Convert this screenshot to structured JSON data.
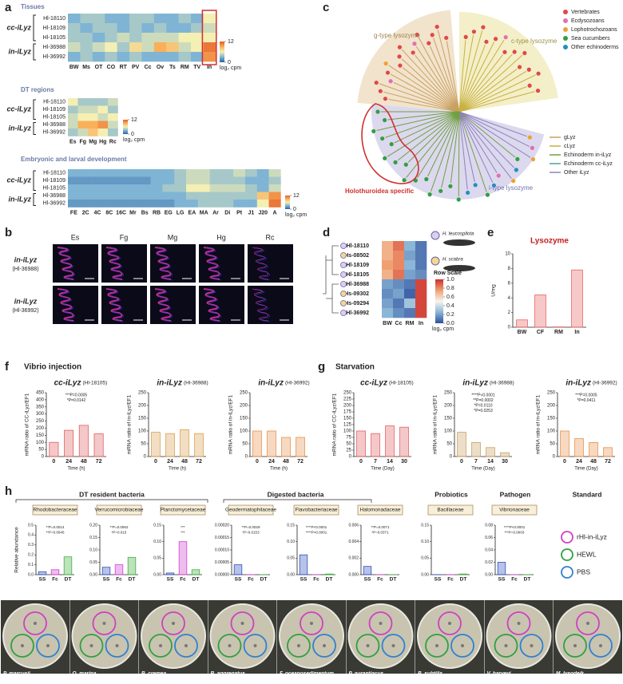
{
  "panel_labels": [
    "a",
    "b",
    "c",
    "d",
    "e",
    "f",
    "g",
    "h"
  ],
  "a": {
    "groups": [
      "cc-iLyz",
      "in-iLyz"
    ]
  },
  "b": {
    "columns": [
      "Es",
      "Fg",
      "Mg",
      "Hg",
      "Rc"
    ],
    "rows": [
      {
        "gene": "in-iLyz",
        "id": "(Hl-36988)"
      },
      {
        "gene": "in-iLyz",
        "id": "(Hl-36992)"
      }
    ]
  },
  "c": {
    "sectors": [
      "g-type lysozyme",
      "c-type lysozyme",
      "i-type lysozyme"
    ],
    "highlight": "Holothuroidea specific",
    "dot_legend": [
      {
        "name": "Vertebrates",
        "color": "#e04848"
      },
      {
        "name": "Ecdysozoans",
        "color": "#e070b0"
      },
      {
        "name": "Lophotrochozoans",
        "color": "#f0a030"
      },
      {
        "name": "Sea cucumbers",
        "color": "#30a040"
      },
      {
        "name": "Other echinoderms",
        "color": "#2090c0"
      }
    ],
    "line_legend": [
      {
        "name": "gLyz",
        "color": "#c8a060"
      },
      {
        "name": "cLyz",
        "color": "#c8b040"
      },
      {
        "name": "Echinoderm in-iLyz",
        "color": "#70a040"
      },
      {
        "name": "Echinoderm cc-iLyz",
        "color": "#50a0a0"
      },
      {
        "name": "Other iLyz",
        "color": "#9080c0"
      }
    ]
  },
  "d": {
    "species": [
      "H. leucospilota",
      "H. scabra"
    ]
  },
  "f": {
    "title": "Vibrio injection"
  },
  "g": {
    "title": "Starvation"
  },
  "h": {
    "headers": [
      "DT resident bacteria",
      "Digested bacteria",
      "Probiotics",
      "Pathogen",
      "Standard"
    ],
    "legend": [
      {
        "name": "rHl-in-iLyz",
        "color": "#d040c0"
      },
      {
        "name": "HEWL",
        "color": "#30a040"
      },
      {
        "name": "PBS",
        "color": "#3080d0"
      }
    ],
    "species": [
      "P. marcusii",
      "O. marina",
      "B. cremea",
      "B. aggregatus",
      "F. oceanosedimentum",
      "P. aurantiacus",
      "B. subtilis",
      "V. harveyi",
      "M. lysodeik"
    ]
  },
  "chart_data": [
    {
      "type": "heatmap",
      "title": "Tissues",
      "rows": [
        "Hl-18110",
        "Hl-18109",
        "Hl-18105",
        "Hl-36988",
        "Hl-36992"
      ],
      "columns": [
        "BW",
        "Ms",
        "OT",
        "CO",
        "RT",
        "PV",
        "Cc",
        "Ov",
        "Ts",
        "RM",
        "TV",
        "In"
      ],
      "values": [
        [
          3,
          4,
          4,
          3,
          3,
          4,
          4,
          3,
          3,
          4,
          3,
          6
        ],
        [
          4,
          3,
          4,
          4,
          3,
          4,
          3,
          4,
          3,
          3,
          4,
          5
        ],
        [
          4,
          4,
          3,
          4,
          5,
          4,
          5,
          5,
          5,
          6,
          6,
          6
        ],
        [
          5,
          4,
          5,
          6,
          4,
          7,
          5,
          9,
          8,
          5,
          6,
          11
        ],
        [
          3,
          4,
          3,
          4,
          3,
          4,
          3,
          3,
          3,
          4,
          3,
          10
        ]
      ],
      "zlim": [
        0,
        12
      ],
      "zticks": [
        0,
        12
      ],
      "zlabel": "log₂ cpm"
    },
    {
      "type": "heatmap",
      "title": "DT regions",
      "rows": [
        "Hl-18110",
        "Hl-18109",
        "Hl-18105",
        "Hl-36988",
        "Hl-36992"
      ],
      "columns": [
        "Es",
        "Fg",
        "Mg",
        "Hg",
        "Rc"
      ],
      "values": [
        [
          6,
          4,
          4,
          4,
          5
        ],
        [
          4,
          5,
          5,
          6,
          4
        ],
        [
          5,
          6,
          6,
          5,
          6
        ],
        [
          5,
          9,
          9,
          10,
          5
        ],
        [
          4,
          5,
          8,
          6,
          4
        ]
      ],
      "zlim": [
        0,
        12
      ],
      "zticks": [
        0,
        12
      ],
      "zlabel": "log₂ cpm"
    },
    {
      "type": "heatmap",
      "title": "Embryonic and larval development",
      "rows": [
        "Hl-18110",
        "Hl-18109",
        "Hl-18105",
        "Hl-36988",
        "Hl-36992"
      ],
      "columns": [
        "FE",
        "2C",
        "4C",
        "8C",
        "16C",
        "Mr",
        "Bs",
        "RB",
        "EG",
        "LG",
        "EA",
        "MA",
        "Ar",
        "Di",
        "Pt",
        "J1",
        "J20",
        "A"
      ],
      "values": [
        [
          3,
          3,
          3,
          3,
          3,
          3,
          3,
          3,
          3,
          4,
          5,
          5,
          4,
          4,
          5,
          4,
          3,
          5
        ],
        [
          2,
          2,
          2,
          2,
          2,
          2,
          2,
          3,
          3,
          4,
          5,
          5,
          4,
          4,
          4,
          3,
          3,
          4
        ],
        [
          3,
          3,
          3,
          3,
          3,
          3,
          3,
          3,
          4,
          4,
          6,
          6,
          5,
          5,
          5,
          4,
          3,
          5
        ],
        [
          3,
          3,
          3,
          3,
          3,
          3,
          3,
          3,
          3,
          3,
          4,
          4,
          4,
          4,
          4,
          4,
          8,
          10
        ],
        [
          2,
          2,
          2,
          2,
          2,
          2,
          2,
          2,
          2,
          3,
          3,
          4,
          4,
          4,
          3,
          3,
          6,
          11
        ]
      ],
      "zlim": [
        0,
        12
      ],
      "zticks": [
        0,
        12
      ],
      "zlabel": "log₂ cpm"
    },
    {
      "type": "heatmap",
      "rows": [
        "Hl-18110",
        "Hs-08502",
        "Hl-18109",
        "Hl-18105",
        "Hl-36988",
        "Hs-09302",
        "Hs-09294",
        "Hl-36992"
      ],
      "columns": [
        "BW",
        "Cc",
        "RM",
        "In"
      ],
      "values": [
        [
          0.7,
          0.85,
          0.25,
          0.1
        ],
        [
          0.7,
          0.8,
          0.2,
          0.1
        ],
        [
          0.75,
          0.8,
          0.25,
          0.1
        ],
        [
          0.7,
          0.85,
          0.2,
          0.15
        ],
        [
          0.2,
          0.15,
          0.1,
          0.95
        ],
        [
          0.15,
          0.2,
          0.05,
          0.95
        ],
        [
          0.2,
          0.1,
          0.3,
          0.95
        ],
        [
          0.25,
          0.15,
          0.1,
          0.95
        ]
      ],
      "zlim": [
        0,
        1
      ],
      "zticks": [
        {
          "value": 0,
          "label": "0.0"
        },
        0.2,
        0.4,
        0.6,
        0.8,
        {
          "value": 1,
          "label": "1.0"
        }
      ],
      "ztitle": "Row Scale",
      "zlabel": "log₂ cpm"
    },
    {
      "type": "bar",
      "title": "Lysozyme",
      "categories": [
        "BW",
        "CF",
        "RM",
        "In"
      ],
      "values": [
        1.0,
        4.4,
        0.05,
        7.8
      ],
      "color": "#e86060",
      "ylim": [
        0,
        10
      ],
      "yticks": [
        0,
        2,
        4,
        6,
        8,
        10
      ],
      "ylabel": "U/mg"
    },
    {
      "type": "bar",
      "title": "cc-iLyz",
      "subtitle": "(Hl-18105)",
      "categories": [
        "0",
        "24",
        "48",
        "72"
      ],
      "values": [
        100,
        185,
        220,
        160
      ],
      "color": "#e06060",
      "ylim": [
        0,
        450
      ],
      "yticks": [
        0,
        50,
        100,
        150,
        200,
        250,
        300,
        350,
        400,
        450
      ],
      "ylabel": "mRNA ratio of CC-iLyz/EF1",
      "xlabel": "Time (h)",
      "annotations": [
        "***P=0.0005",
        "*P=0.0142"
      ]
    },
    {
      "type": "bar",
      "title": "in-iLyz",
      "subtitle": "(Hl-36988)",
      "categories": [
        "0",
        "24",
        "48",
        "72"
      ],
      "values": [
        95,
        90,
        105,
        90
      ],
      "color": "#d9a050",
      "ylim": [
        0,
        250
      ],
      "yticks": [
        0,
        50,
        100,
        150,
        200,
        250
      ],
      "ylabel": "mRNA ratio of in-iLyz/EF1",
      "xlabel": "Time (h)"
    },
    {
      "type": "bar",
      "title": "in-iLyz",
      "subtitle": "(Hl-36992)",
      "categories": [
        "0",
        "24",
        "48",
        "72"
      ],
      "values": [
        100,
        100,
        75,
        75
      ],
      "color": "#e8904a",
      "ylim": [
        0,
        250
      ],
      "yticks": [
        0,
        50,
        100,
        150,
        200,
        250
      ],
      "ylabel": "mRNA ratio of in-iLyz/EF1",
      "xlabel": "Time (h)"
    },
    {
      "type": "bar",
      "title": "cc-iLyz",
      "subtitle": "(Hl-18105)",
      "categories": [
        "0",
        "7",
        "14",
        "30"
      ],
      "values": [
        100,
        90,
        120,
        115
      ],
      "color": "#e06060",
      "ylim": [
        0,
        250
      ],
      "yticks": [
        0,
        25,
        50,
        75,
        100,
        125,
        150,
        175,
        200,
        225,
        250
      ],
      "ylabel": "mRNA ratio of CC-iLyz/EF1",
      "xlabel": "Time (Day)"
    },
    {
      "type": "bar",
      "title": "in-iLyz",
      "subtitle": "(Hl-36988)",
      "categories": [
        "0",
        "7",
        "14",
        "30"
      ],
      "values": [
        95,
        55,
        35,
        15
      ],
      "color": "#c8a060",
      "ylim": [
        0,
        250
      ],
      "yticks": [
        0,
        50,
        100,
        150,
        200,
        250
      ],
      "ylabel": "mRNA ratio of in-iLyz/EF1",
      "xlabel": "Time (Day)",
      "annotations": [
        "****P<0.0001",
        "**P=0.0002",
        "*P=0.0110",
        "*P=0.0253"
      ]
    },
    {
      "type": "bar",
      "title": "in-iLyz",
      "subtitle": "(Hl-36992)",
      "categories": [
        "0",
        "24",
        "48",
        "72"
      ],
      "values": [
        100,
        70,
        55,
        35
      ],
      "color": "#e8904a",
      "ylim": [
        0,
        250
      ],
      "yticks": [
        0,
        50,
        100,
        150,
        200,
        250
      ],
      "ylabel": "mRNA ratio of in-iLyz/EF1",
      "xlabel": "Time (Day)",
      "annotations": [
        "***P=0.0005",
        "*P=0.0411"
      ]
    },
    {
      "type": "bar",
      "title": "Rhodobacteraceae",
      "categories": [
        "SS",
        "Fc",
        "DT"
      ],
      "values": [
        0.03,
        0.05,
        0.18
      ],
      "colors": [
        "#3050c0",
        "#d040d0",
        "#40b040"
      ],
      "ylim": [
        0,
        0.5
      ],
      "yticks": [
        {
          "value": 0,
          "label": "0.0"
        },
        0.1,
        0.2,
        0.3,
        0.4,
        0.5
      ],
      "ylabel": "Relative abundance",
      "annotations": [
        "**P=0.0014",
        "**P=0.0045"
      ]
    },
    {
      "type": "bar",
      "title": "Verrucomicrobiaceae",
      "categories": [
        "SS",
        "Fc",
        "DT"
      ],
      "values": [
        0.03,
        0.04,
        0.07
      ],
      "colors": [
        "#3050c0",
        "#d040d0",
        "#40b040"
      ],
      "ylim": [
        0,
        0.2
      ],
      "yticks": [
        {
          "value": 0,
          "label": "0.00"
        },
        0.05,
        {
          "value": 0.1,
          "label": "0.10"
        },
        0.15,
        {
          "value": 0.2,
          "label": "0.20"
        }
      ],
      "annotations": [
        "**P=0.0062",
        "*P=0.015"
      ]
    },
    {
      "type": "bar",
      "title": "Planctomycetaceae",
      "categories": [
        "SS",
        "Fc",
        "DT"
      ],
      "values": [
        0.005,
        0.1,
        0.015
      ],
      "colors": [
        "#3050c0",
        "#d040d0",
        "#40b040"
      ],
      "ylim": [
        0,
        0.15
      ],
      "yticks": [
        {
          "value": 0,
          "label": "0.00"
        },
        0.05,
        {
          "value": 0.1,
          "label": "0.10"
        },
        0.15
      ],
      "annotations": [
        "***",
        "***"
      ]
    },
    {
      "type": "bar",
      "title": "Geodermatophilaceae",
      "categories": [
        "SS",
        "Fc",
        "DT"
      ],
      "values": [
        4e-05,
        0,
        0
      ],
      "colors": [
        "#3050c0",
        "#d040d0",
        "#40b040"
      ],
      "ylim": [
        0,
        0.0002
      ],
      "yticks": [
        {
          "value": 0,
          "label": "0.00000"
        },
        5e-05,
        {
          "value": 0.0001,
          "label": "0.00010"
        },
        0.00015,
        {
          "value": 0.0002,
          "label": "0.00020"
        }
      ],
      "annotations": [
        "**P=0.0029",
        "*P=0.0153"
      ]
    },
    {
      "type": "bar",
      "title": "Flavobacteriaceae",
      "categories": [
        "SS",
        "Fc",
        "DT"
      ],
      "values": [
        0.06,
        0,
        0.002
      ],
      "colors": [
        "#3050c0",
        "#d040d0",
        "#40b040"
      ],
      "ylim": [
        0,
        0.15
      ],
      "yticks": [
        {
          "value": 0,
          "label": "0.00"
        },
        0.05,
        {
          "value": 0.1,
          "label": "0.10"
        },
        0.15
      ],
      "annotations": [
        "****P<0.0001",
        "****P<0.0001"
      ]
    },
    {
      "type": "bar",
      "title": "Halomonadaceae",
      "categories": [
        "SS",
        "Fc",
        "DT"
      ],
      "values": [
        0.001,
        0,
        0
      ],
      "colors": [
        "#3050c0",
        "#d040d0",
        "#40b040"
      ],
      "ylim": [
        0,
        0.006
      ],
      "yticks": [
        {
          "value": 0,
          "label": "0.000"
        },
        0.002,
        0.004,
        0.006
      ],
      "annotations": [
        "**P=0.0071",
        "*P=0.0371"
      ]
    },
    {
      "type": "bar",
      "title": "Bacillaceae",
      "categories": [
        "SS",
        "Fc",
        "DT"
      ],
      "values": [
        0,
        0,
        0.002
      ],
      "colors": [
        "#3050c0",
        "#d040d0",
        "#40b040"
      ],
      "ylim": [
        0,
        0.15
      ],
      "yticks": [
        {
          "value": 0,
          "label": "0.00"
        },
        0.05,
        {
          "value": 0.1,
          "label": "0.10"
        },
        0.15
      ]
    },
    {
      "type": "bar",
      "title": "Vibrionaceae",
      "categories": [
        "SS",
        "Fc",
        "DT"
      ],
      "values": [
        0.02,
        0,
        0
      ],
      "colors": [
        "#3050c0",
        "#d040d0",
        "#40b040"
      ],
      "ylim": [
        0,
        0.08
      ],
      "yticks": [
        {
          "value": 0,
          "label": "0.00"
        },
        0.02,
        0.04,
        0.06,
        0.08
      ],
      "annotations": [
        "****P<0.0001",
        "***P=0.0003"
      ]
    }
  ]
}
